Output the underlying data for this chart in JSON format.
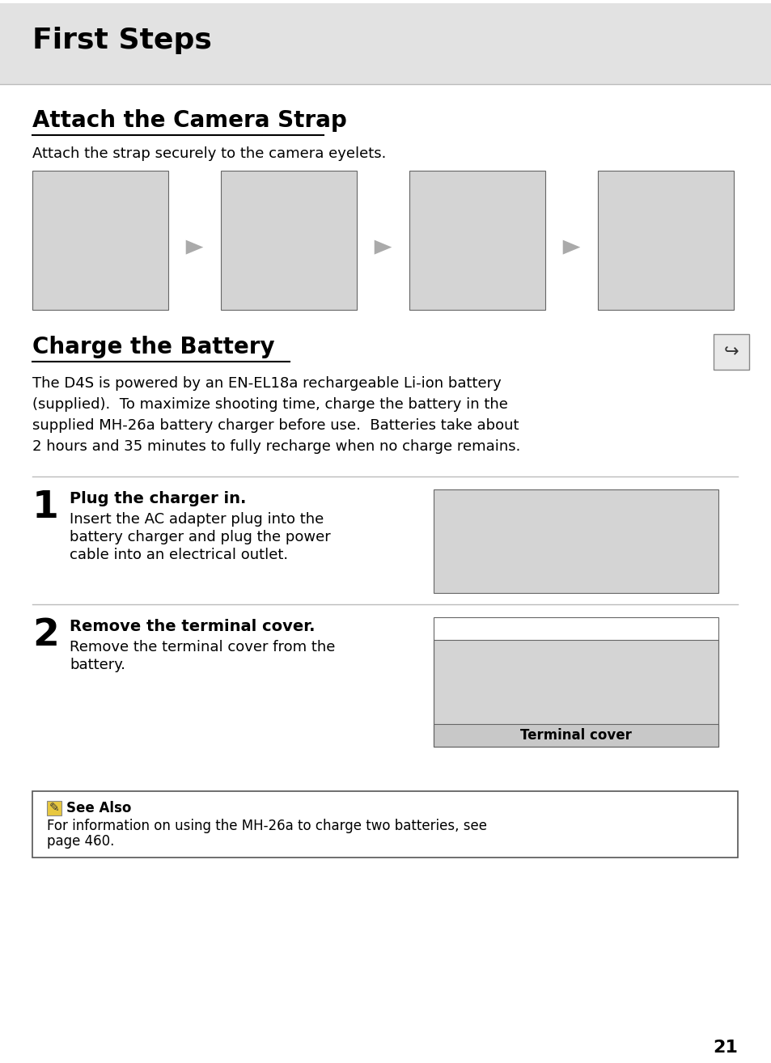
{
  "page_bg": "#ffffff",
  "header_bg": "#e2e2e2",
  "header_text": "First Steps",
  "header_text_color": "#000000",
  "section1_title": "Attach the Camera Strap",
  "section1_subtitle": "Attach the strap securely to the camera eyelets.",
  "section2_title": "Charge the Battery",
  "section2_lines": [
    "The D4S is powered by an EN-EL18a rechargeable Li-ion battery",
    "(supplied).  To maximize shooting time, charge the battery in the",
    "supplied MH-26a battery charger before use.  Batteries take about",
    "2 hours and 35 minutes to fully recharge when no charge remains."
  ],
  "step1_num": "1",
  "step1_title": "Plug the charger in.",
  "step1_body": [
    "Insert the AC adapter plug into the",
    "battery charger and plug the power",
    "cable into an electrical outlet."
  ],
  "step2_num": "2",
  "step2_title": "Remove the terminal cover.",
  "step2_body": [
    "Remove the terminal cover from the",
    "battery."
  ],
  "step2_caption": "Terminal cover",
  "see_also_title": "See Also",
  "see_also_body": [
    "For information on using the MH-26a to charge two batteries, see",
    "page 460."
  ],
  "page_number": "21",
  "step_divider_color": "#bbbbbb",
  "see_also_border": "#555555",
  "img_bg": "#d4d4d4",
  "img_border": "#666666"
}
